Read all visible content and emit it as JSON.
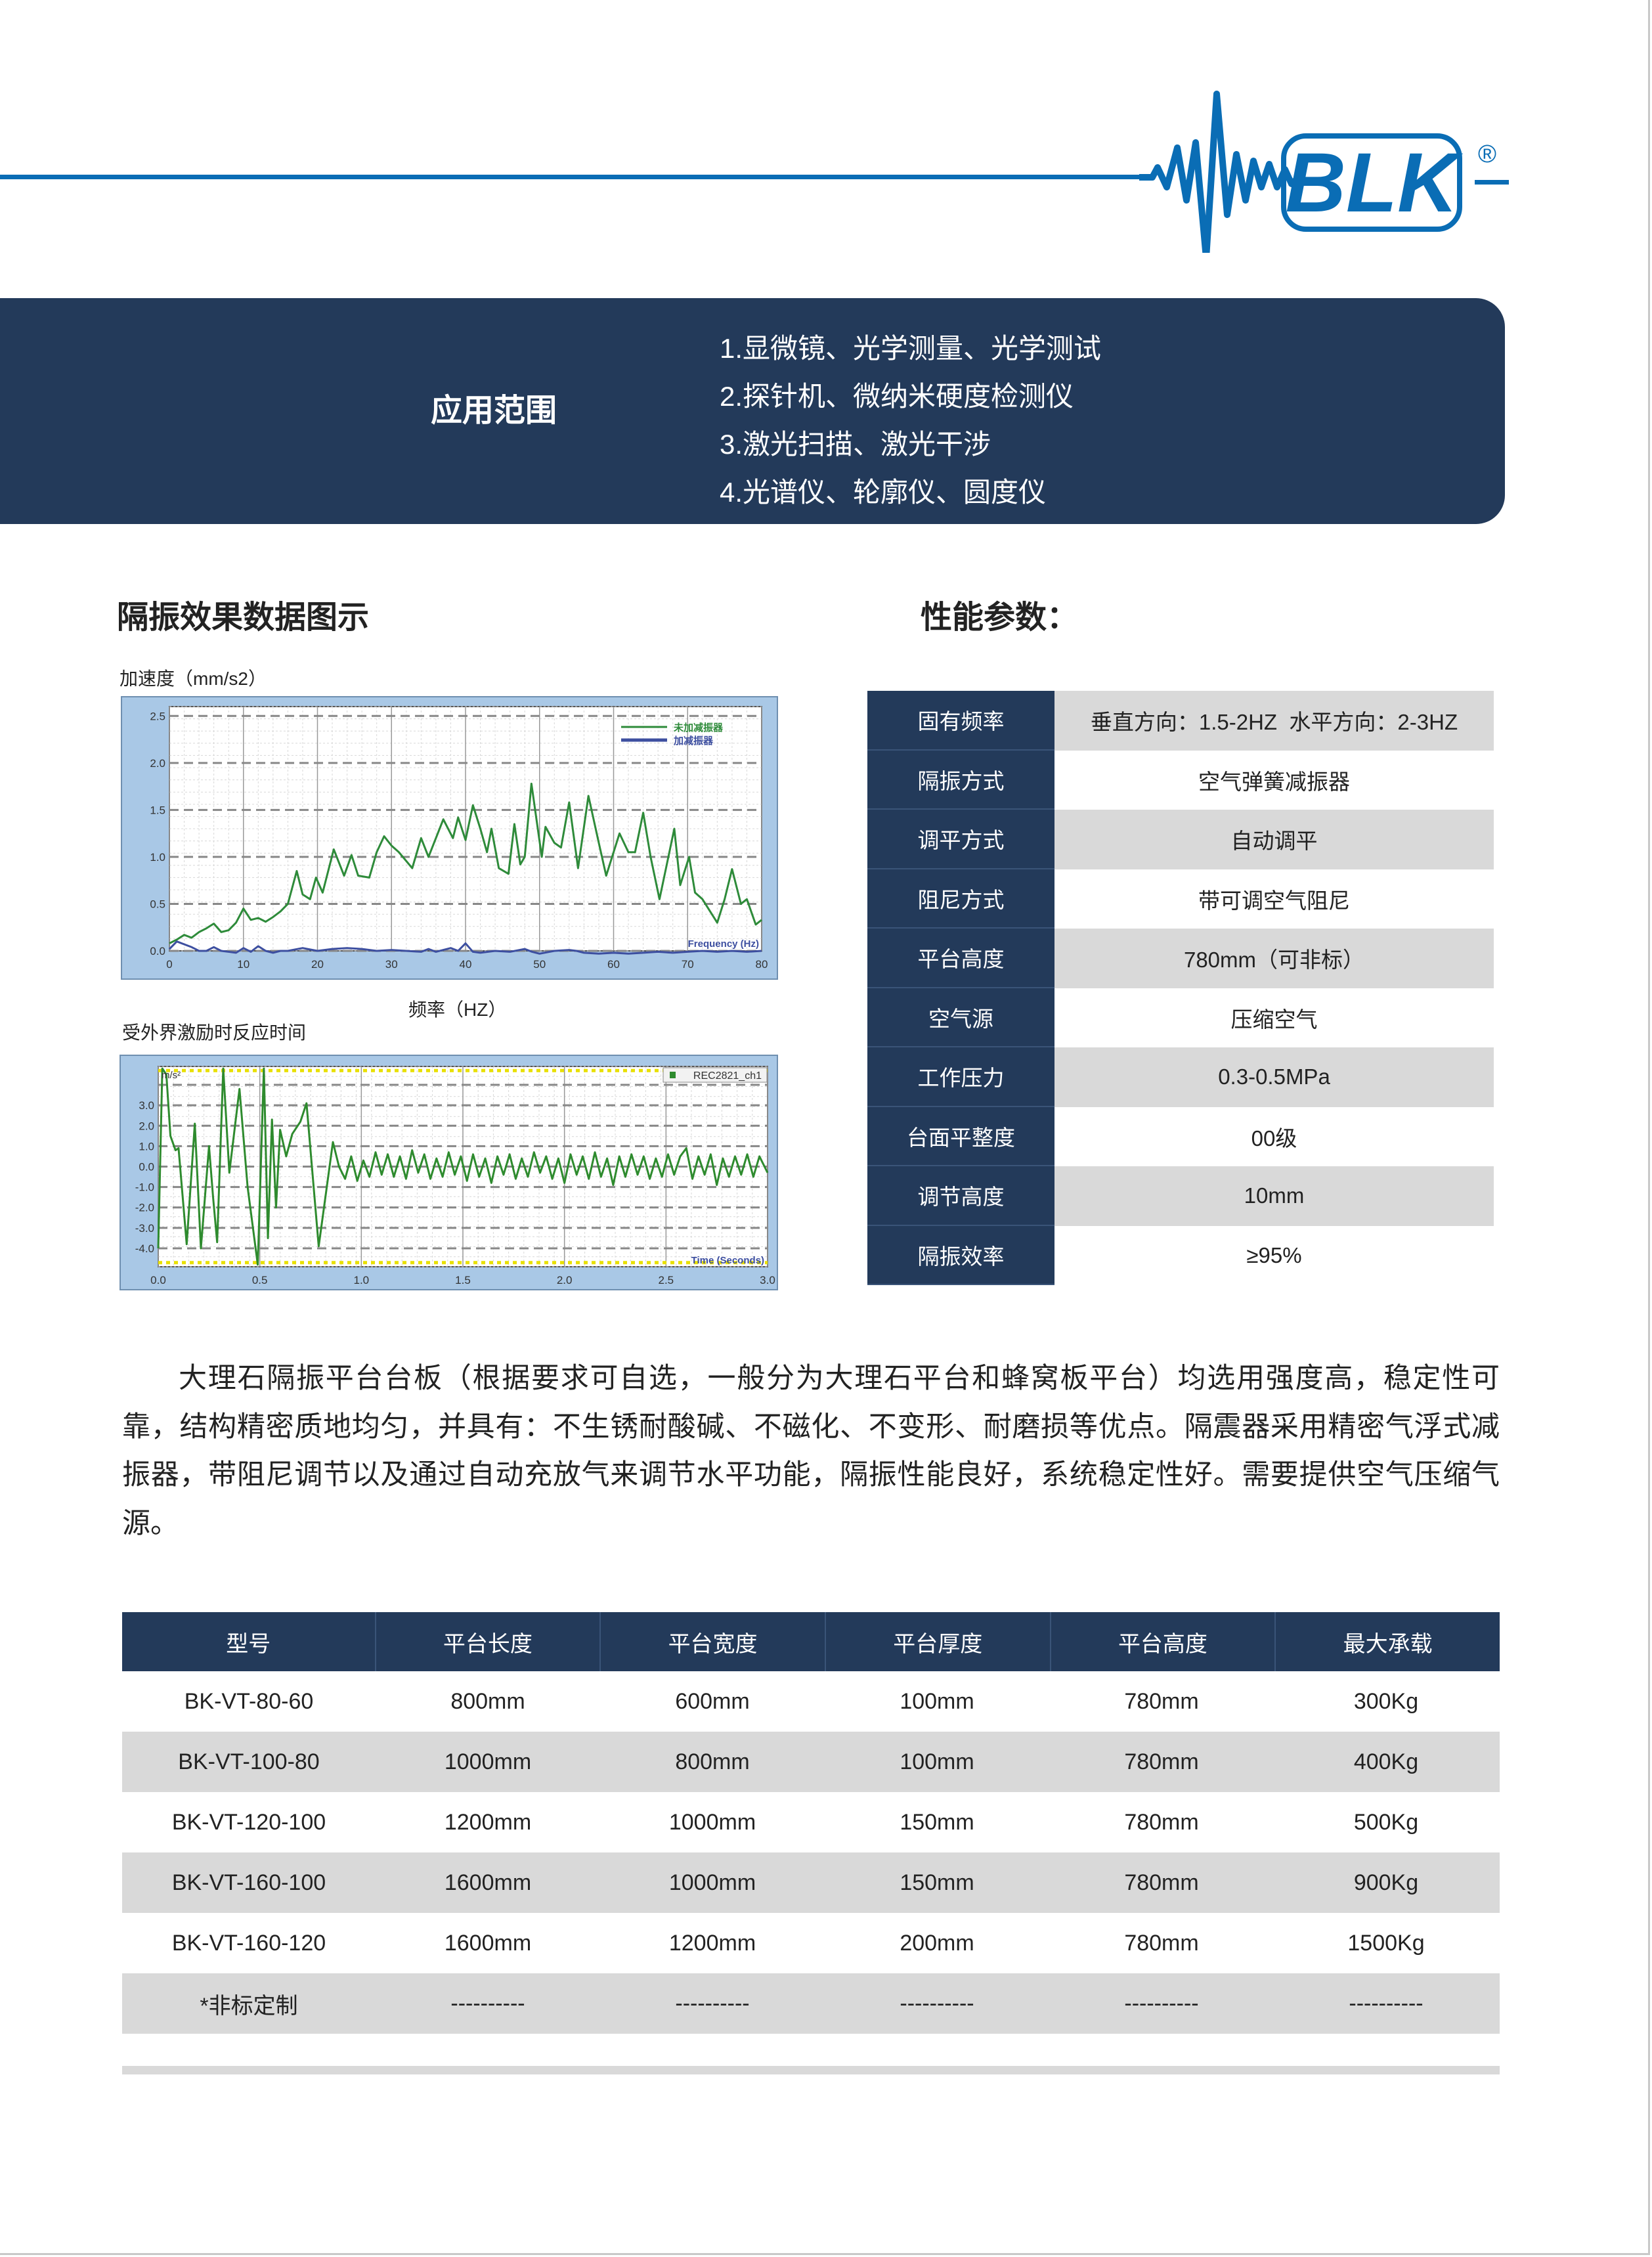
{
  "brand": {
    "logo_text": "BLK",
    "registered": "®",
    "color": "#0a6db5"
  },
  "banner": {
    "title": "应用范围",
    "items": [
      "1.显微镜、光学测量、光学测试",
      "2.探针机、微纳米硬度检测仪",
      "3.激光扫描、激光干涉",
      "4.光谱仪、轮廓仪、圆度仪"
    ],
    "color": "#233a5a"
  },
  "left_section": {
    "title": "隔振效果数据图示",
    "chart1_ylabel": "加速度（mm/s2）",
    "chart1_xlabel": "频率（HZ）",
    "chart2_title": "受外界激励时反应时间"
  },
  "right_section": {
    "title": "性能参数："
  },
  "params": [
    {
      "label": "固有频率",
      "value": "垂直方向：1.5-2HZ  水平方向：2-3HZ"
    },
    {
      "label": "隔振方式",
      "value": "空气弹簧减振器"
    },
    {
      "label": "调平方式",
      "value": "自动调平"
    },
    {
      "label": "阻尼方式",
      "value": "带可调空气阻尼"
    },
    {
      "label": "平台高度",
      "value": "780mm（可非标）"
    },
    {
      "label": "空气源",
      "value": "压缩空气"
    },
    {
      "label": "工作压力",
      "value": "0.3-0.5MPa"
    },
    {
      "label": "台面平整度",
      "value": "00级"
    },
    {
      "label": "调节高度",
      "value": "10mm"
    },
    {
      "label": "隔振效率",
      "value": "≥95%"
    }
  ],
  "paragraph": "大理石隔振平台台板（根据要求可自选，一般分为大理石平台和蜂窝板平台）均选用强度高，稳定性可靠，结构精密质地均匀，并具有：不生锈耐酸碱、不磁化、不变形、耐磨损等优点。隔震器采用精密气浮式减振器，带阻尼调节以及通过自动充放气来调节水平功能，隔振性能良好，系统稳定性好。需要提供空气压缩气源。",
  "spec_table": {
    "headers": [
      "型号",
      "平台长度",
      "平台宽度",
      "平台厚度",
      "平台高度",
      "最大承载"
    ],
    "rows": [
      [
        "BK-VT-80-60",
        "800mm",
        "600mm",
        "100mm",
        "780mm",
        "300Kg"
      ],
      [
        "BK-VT-100-80",
        "1000mm",
        "800mm",
        "100mm",
        "780mm",
        "400Kg"
      ],
      [
        "BK-VT-120-100",
        "1200mm",
        "1000mm",
        "150mm",
        "780mm",
        "500Kg"
      ],
      [
        "BK-VT-160-100",
        "1600mm",
        "1000mm",
        "150mm",
        "780mm",
        "900Kg"
      ],
      [
        "BK-VT-160-120",
        "1600mm",
        "1200mm",
        "200mm",
        "780mm",
        "1500Kg"
      ],
      [
        "*非标定制",
        "----------",
        "----------",
        "----------",
        "----------",
        "----------"
      ]
    ]
  },
  "chart_data": [
    {
      "type": "line",
      "xlabel": "Frequency (Hz)",
      "xlim": [
        0,
        80
      ],
      "ylim": [
        0,
        2.6
      ],
      "xticks": [
        0,
        10,
        20,
        30,
        40,
        50,
        60,
        70,
        80
      ],
      "yticks": [
        0.0,
        0.5,
        1.0,
        1.5,
        2.0,
        2.5
      ],
      "grid": true,
      "legend": "top-right",
      "series": [
        {
          "name": "未加减振器",
          "color": "#2e8b3a",
          "x": [
            0,
            1,
            2,
            3,
            4,
            5,
            6,
            7,
            8,
            9,
            10,
            11,
            12,
            13,
            14,
            15,
            16,
            17.2,
            18,
            19,
            19.8,
            20.7,
            22.2,
            23.6,
            24.6,
            25.5,
            27,
            28,
            29,
            30,
            31,
            32.8,
            34,
            35,
            37,
            38.3,
            39,
            40,
            41,
            42,
            42.9,
            43.5,
            44.5,
            45.8,
            46.6,
            47.4,
            48,
            48.9,
            50.3,
            50.8,
            52,
            52.9,
            54,
            55.2,
            56.6,
            58,
            59,
            60.8,
            62,
            62.9,
            64,
            65,
            66.2,
            68.2,
            69,
            70.2,
            71,
            72,
            74,
            75,
            76,
            77.2,
            78,
            79.2,
            80
          ],
          "y": [
            0.08,
            0.12,
            0.17,
            0.14,
            0.2,
            0.24,
            0.29,
            0.2,
            0.22,
            0.3,
            0.45,
            0.33,
            0.35,
            0.31,
            0.36,
            0.42,
            0.5,
            0.85,
            0.6,
            0.55,
            0.78,
            0.62,
            1.08,
            0.8,
            1.02,
            0.8,
            0.78,
            1.05,
            1.22,
            1.12,
            1.05,
            0.88,
            1.2,
            1.0,
            1.4,
            1.2,
            1.42,
            1.18,
            1.55,
            1.3,
            1.05,
            1.3,
            0.88,
            0.82,
            1.35,
            0.92,
            1.0,
            1.78,
            1.0,
            1.32,
            1.15,
            1.1,
            1.58,
            0.88,
            1.65,
            1.15,
            0.8,
            1.25,
            1.05,
            1.05,
            1.47,
            1.0,
            0.55,
            1.3,
            0.7,
            1.0,
            0.62,
            0.55,
            0.3,
            0.55,
            0.87,
            0.5,
            0.55,
            0.28,
            0.33
          ]
        },
        {
          "name": "加减振器",
          "color": "#3d4fa0",
          "x": [
            0,
            1,
            2,
            3,
            4,
            5,
            6,
            7,
            8,
            9,
            10,
            11,
            12,
            13,
            14,
            15,
            16,
            18,
            20,
            22,
            24,
            26,
            28,
            30,
            32,
            34,
            35,
            36,
            38,
            39,
            40,
            41,
            42,
            44,
            46,
            48,
            49,
            50,
            52,
            54,
            55,
            56,
            58,
            60,
            62,
            64,
            66,
            68,
            70,
            72,
            74,
            76,
            78,
            80
          ],
          "y": [
            0.02,
            0.1,
            0.07,
            0.04,
            0.0,
            0.0,
            0.04,
            0.0,
            -0.01,
            -0.02,
            0.03,
            -0.01,
            0.05,
            0.0,
            -0.02,
            0.0,
            0.0,
            0.03,
            0.0,
            0.02,
            0.03,
            0.02,
            0.0,
            0.01,
            0.0,
            -0.01,
            0.02,
            -0.01,
            0.03,
            0.0,
            0.08,
            -0.01,
            -0.02,
            0.0,
            -0.01,
            0.02,
            -0.01,
            -0.03,
            0.0,
            0.01,
            0.0,
            -0.02,
            -0.03,
            -0.02,
            -0.03,
            -0.02,
            -0.01,
            -0.02,
            -0.01,
            0.0,
            -0.01,
            0.0,
            -0.01,
            0.0
          ]
        }
      ]
    },
    {
      "type": "line",
      "ylabel": "m/s²",
      "xlabel": "Time (Seconds)",
      "xlim": [
        0,
        3.0
      ],
      "ylim": [
        -4.9,
        4.9
      ],
      "xticks": [
        0.0,
        0.5,
        1.0,
        1.5,
        2.0,
        2.5,
        3.0
      ],
      "yticks": [
        3.0,
        2.0,
        1.0,
        0.0,
        -1.0,
        -2.0,
        -3.0,
        -4.0
      ],
      "grid": true,
      "legend": "top-right",
      "series": [
        {
          "name": "REC2821_ch1",
          "color": "#2e8b2e",
          "x": [
            0,
            0.02,
            0.04,
            0.06,
            0.085,
            0.1,
            0.14,
            0.18,
            0.21,
            0.25,
            0.27,
            0.29,
            0.32,
            0.35,
            0.4,
            0.44,
            0.49,
            0.52,
            0.54,
            0.56,
            0.58,
            0.6,
            0.63,
            0.66,
            0.7,
            0.73,
            0.79,
            0.86,
            0.89,
            0.92,
            0.95,
            0.98,
            1.01,
            1.04,
            1.07,
            1.1,
            1.13,
            1.16,
            1.19,
            1.22,
            1.25,
            1.28,
            1.31,
            1.34,
            1.37,
            1.4,
            1.43,
            1.46,
            1.49,
            1.52,
            1.55,
            1.58,
            1.61,
            1.64,
            1.67,
            1.7,
            1.73,
            1.76,
            1.79,
            1.82,
            1.85,
            1.88,
            1.91,
            1.94,
            1.97,
            2.0,
            2.03,
            2.06,
            2.09,
            2.12,
            2.15,
            2.18,
            2.21,
            2.24,
            2.27,
            2.3,
            2.33,
            2.36,
            2.39,
            2.42,
            2.45,
            2.48,
            2.51,
            2.54,
            2.57,
            2.6,
            2.63,
            2.66,
            2.69,
            2.72,
            2.75,
            2.78,
            2.81,
            2.84,
            2.87,
            2.9,
            2.93,
            2.96,
            3.0
          ],
          "y": [
            -4.0,
            4.8,
            4.5,
            1.5,
            0.8,
            0.9,
            -3.8,
            2.1,
            -4.0,
            1.0,
            -1.5,
            -3.7,
            4.8,
            -0.3,
            3.8,
            -1.0,
            -4.8,
            4.8,
            -3.5,
            2.3,
            -2.0,
            1.8,
            0.5,
            1.6,
            2.2,
            3.1,
            -3.9,
            1.2,
            0.0,
            -0.6,
            0.5,
            -0.7,
            0.3,
            -0.5,
            0.7,
            -0.4,
            0.6,
            -0.5,
            0.5,
            -0.6,
            0.8,
            -0.3,
            0.6,
            -0.6,
            0.4,
            -0.5,
            0.7,
            -0.4,
            0.5,
            -0.7,
            0.6,
            -0.5,
            0.4,
            -0.8,
            0.5,
            -0.4,
            0.6,
            -0.6,
            0.4,
            -0.5,
            0.7,
            -0.3,
            0.5,
            -0.6,
            0.4,
            -0.8,
            0.6,
            -0.4,
            0.5,
            -0.6,
            0.7,
            -0.5,
            0.4,
            -0.9,
            0.5,
            -0.5,
            0.6,
            -0.4,
            0.5,
            -0.6,
            0.4,
            -0.5,
            0.6,
            -0.4,
            0.5,
            0.9,
            -0.6,
            0.5,
            -0.4,
            0.6,
            -0.9,
            0.4,
            -0.5,
            0.5,
            -0.4,
            0.6,
            -0.5,
            0.5,
            -0.3
          ]
        }
      ]
    }
  ]
}
